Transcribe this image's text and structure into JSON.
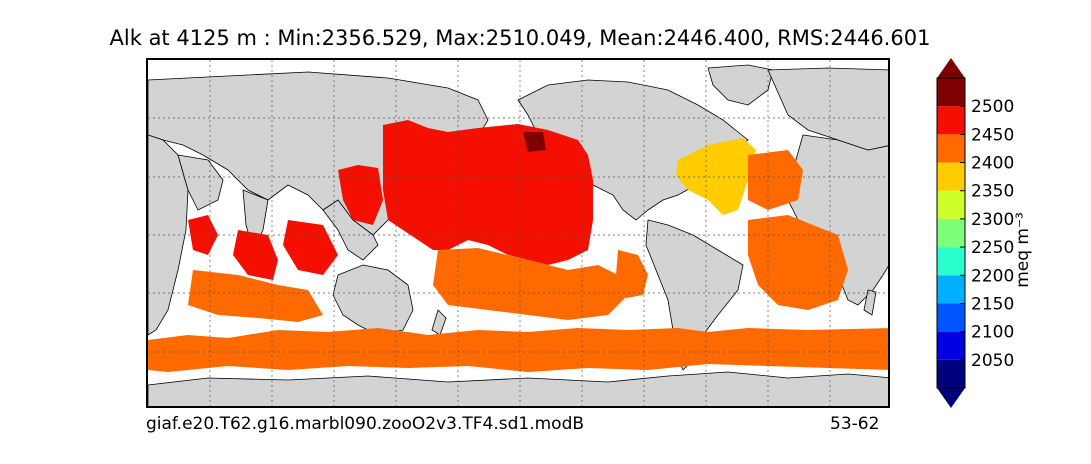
{
  "title": "Alk at 4125 m : Min:2356.529, Max:2510.049, Mean:2446.400, RMS:2446.601",
  "caption_left": "giaf.e20.T62.g16.marbl090.zooO2v3.TF4.sd1.modB",
  "caption_right": "53-62",
  "colorbar": {
    "unit_label": "meq m⁻³",
    "ticks": [
      "2050",
      "2100",
      "2150",
      "2200",
      "2250",
      "2300",
      "2350",
      "2400",
      "2450",
      "2500"
    ],
    "colors": [
      "#00007f",
      "#0000e0",
      "#0055ff",
      "#00b0ff",
      "#29ffce",
      "#7dff7a",
      "#ceff29",
      "#ffcc00",
      "#ff6a00",
      "#f50f00",
      "#7f0000"
    ],
    "extend": "both"
  },
  "colors": {
    "land": "#d3d3d3",
    "ocean_missing": "#ffffff",
    "pacific_high": "#f50f00",
    "atlantic_indian_southern": "#ff6a00",
    "north_atlantic": "#ffcc00",
    "max_patch": "#7f0000"
  },
  "map": {
    "projection": "plate-carree",
    "gridlines": true
  }
}
